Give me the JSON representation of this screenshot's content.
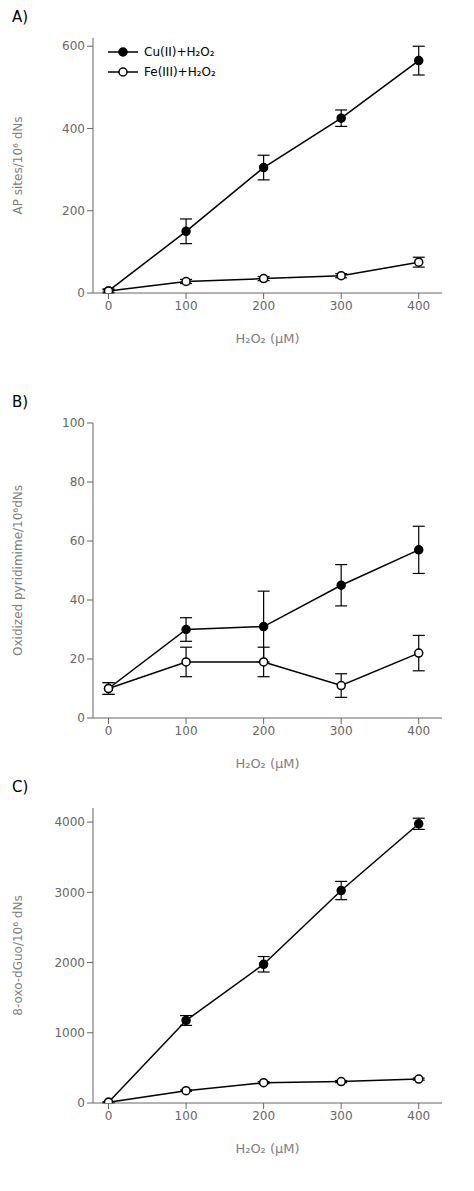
{
  "chart_data": [
    {
      "type": "line",
      "title": "A)",
      "x": [
        0,
        100,
        200,
        300,
        400
      ],
      "xlabel": "H₂O₂ (μM)",
      "ylabel": "AP sites/10⁶ dNs",
      "xlim": [
        -20,
        430
      ],
      "xticks": [
        0,
        100,
        200,
        300,
        400
      ],
      "ylim": [
        0,
        620
      ],
      "yticks": [
        0,
        200,
        400,
        600
      ],
      "grid": false,
      "legend": "upper left",
      "series": [
        {
          "name": "Cu(II)+H₂O₂",
          "color": "black",
          "marker": "filled_circle",
          "values": [
            5,
            150,
            305,
            425,
            565
          ],
          "errors": [
            5,
            30,
            30,
            20,
            35
          ]
        },
        {
          "name": "Fe(III)+H₂O₂",
          "color": "black",
          "marker": "open_circle",
          "values": [
            5,
            28,
            35,
            42,
            75
          ],
          "errors": [
            3,
            5,
            5,
            5,
            12
          ]
        }
      ]
    },
    {
      "type": "line",
      "title": "B)",
      "x": [
        0,
        100,
        200,
        300,
        400
      ],
      "xlabel": "H₂O₂ (μM)",
      "ylabel": "Oxidized pyridimime/10⁶dNs",
      "xlim": [
        -20,
        430
      ],
      "xticks": [
        0,
        100,
        200,
        300,
        400
      ],
      "ylim": [
        0,
        100
      ],
      "yticks": [
        0,
        20,
        40,
        60,
        80,
        100
      ],
      "grid": false,
      "legend": false,
      "series": [
        {
          "name": "Cu(II)+H₂O₂",
          "color": "black",
          "marker": "filled_circle",
          "values": [
            10,
            30,
            31,
            45,
            57
          ],
          "errors": [
            2,
            4,
            12,
            7,
            8
          ]
        },
        {
          "name": "Fe(III)+H₂O₂",
          "color": "black",
          "marker": "open_circle",
          "values": [
            10,
            19,
            19,
            11,
            22
          ],
          "errors": [
            2,
            5,
            5,
            4,
            6
          ]
        }
      ]
    },
    {
      "type": "line",
      "title": "C)",
      "x": [
        0,
        100,
        200,
        300,
        400
      ],
      "xlabel": "H₂O₂ (μM)",
      "ylabel": "8-oxo-dGuo/10⁶ dNs",
      "xlim": [
        -20,
        430
      ],
      "xticks": [
        0,
        100,
        200,
        300,
        400
      ],
      "ylim": [
        0,
        4200
      ],
      "yticks": [
        0,
        1000,
        2000,
        3000,
        4000
      ],
      "grid": false,
      "legend": false,
      "series": [
        {
          "name": "Cu(II)+H₂O₂",
          "color": "black",
          "marker": "filled_circle",
          "values": [
            10,
            1175,
            1975,
            3025,
            3975
          ],
          "errors": [
            5,
            70,
            110,
            130,
            80
          ]
        },
        {
          "name": "Fe(III)+H₂O₂",
          "color": "black",
          "marker": "open_circle",
          "values": [
            10,
            175,
            290,
            305,
            340
          ],
          "errors": [
            5,
            10,
            15,
            15,
            15
          ]
        }
      ]
    }
  ]
}
